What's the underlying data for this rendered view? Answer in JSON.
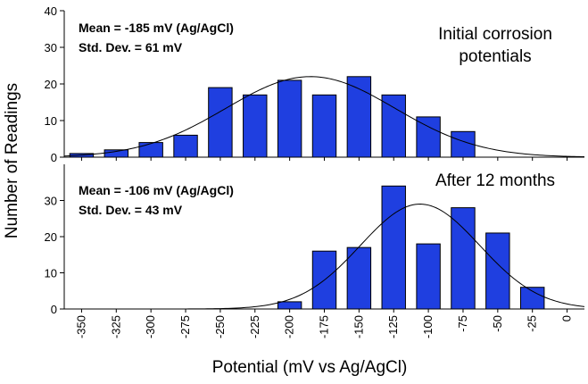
{
  "chart_data": [
    {
      "type": "bar",
      "panel": "top",
      "title": "Initial corrosion potentials",
      "title_lines": [
        "Initial corrosion",
        "potentials"
      ],
      "stats_lines": [
        "Mean = -185 mV (Ag/AgCl)",
        "Std. Dev. = 61 mV"
      ],
      "x": [
        -350,
        -325,
        -300,
        -275,
        -250,
        -225,
        -200,
        -175,
        -150,
        -125,
        -100,
        -75,
        -50,
        -25,
        0
      ],
      "values": [
        1,
        2,
        4,
        6,
        19,
        17,
        21,
        17,
        22,
        17,
        11,
        7,
        0,
        0,
        0
      ],
      "fit": {
        "type": "normal",
        "mean": -185,
        "std": 61,
        "peak": 22
      },
      "ylim": [
        0,
        40
      ],
      "yticks": [
        0,
        10,
        20,
        30,
        40
      ],
      "bar_color": "#1f3fe0",
      "grid": false
    },
    {
      "type": "bar",
      "panel": "bottom",
      "title": "After 12 months",
      "title_lines": [
        "After 12 months"
      ],
      "stats_lines": [
        "Mean = -106 mV (Ag/AgCl)",
        "Std. Dev. = 43 mV"
      ],
      "x": [
        -350,
        -325,
        -300,
        -275,
        -250,
        -225,
        -200,
        -175,
        -150,
        -125,
        -100,
        -75,
        -50,
        -25,
        0
      ],
      "values": [
        0,
        0,
        0,
        0,
        0,
        0,
        2,
        16,
        17,
        34,
        18,
        28,
        21,
        6,
        0
      ],
      "fit": {
        "type": "normal",
        "mean": -106,
        "std": 43,
        "peak": 29
      },
      "ylim": [
        0,
        40
      ],
      "yticks": [
        0,
        10,
        20,
        30
      ],
      "bar_color": "#1f3fe0",
      "grid": false
    }
  ],
  "axes": {
    "xlabel": "Potential (mV vs Ag/AgCl)",
    "ylabel": "Number of Readings",
    "xtick_labels": [
      "-350",
      "-325",
      "-300",
      "-275",
      "-250",
      "-225",
      "-200",
      "-175",
      "-150",
      "-125",
      "-100",
      "-75",
      "-50",
      "-25",
      "0"
    ],
    "xlim": [
      -362.5,
      12.5
    ]
  }
}
